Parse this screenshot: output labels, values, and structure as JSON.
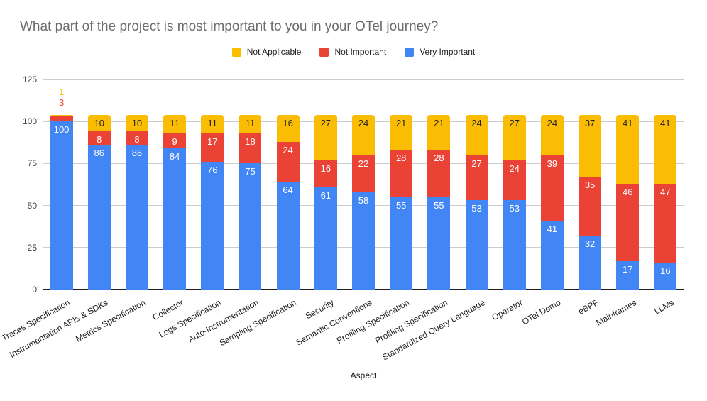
{
  "title": "What part of the project is most important to you in your OTel journey?",
  "legend": [
    {
      "label": "Not Applicable",
      "color": "#FBBC04"
    },
    {
      "label": "Not Important",
      "color": "#EA4335"
    },
    {
      "label": "Very Important",
      "color": "#4285F4"
    }
  ],
  "chart_data": {
    "type": "bar",
    "stacked": true,
    "title": "What part of the project is most important to you in your OTel journey?",
    "xlabel": "Aspect",
    "ylabel": "",
    "ylim": [
      0,
      125
    ],
    "yticks": [
      0,
      25,
      50,
      75,
      100,
      125
    ],
    "grid": true,
    "legend_position": "top",
    "categories": [
      "Traces Specification",
      "Instrumentation APIs & SDKs",
      "Metrics Specification",
      "Collector",
      "Logs Specification",
      "Auto-Instrumentation",
      "Sampling Specification",
      "Security",
      "Semantic Conventions",
      "Profiling Specification",
      "Profiling Specification",
      "Standardized Query Language",
      "Operator",
      "OTel Demo",
      "eBPF",
      "Mainframes",
      "LLMs"
    ],
    "series": [
      {
        "name": "Very Important",
        "color": "#4285F4",
        "label_color": "#ffffff",
        "values": [
          100,
          86,
          86,
          84,
          76,
          75,
          64,
          61,
          58,
          55,
          55,
          53,
          53,
          41,
          32,
          17,
          16
        ]
      },
      {
        "name": "Not Important",
        "color": "#EA4335",
        "label_color": "#ffffff",
        "values": [
          3,
          8,
          8,
          9,
          17,
          18,
          24,
          16,
          22,
          28,
          28,
          27,
          24,
          39,
          35,
          46,
          47
        ]
      },
      {
        "name": "Not Applicable",
        "color": "#FBBC04",
        "label_color": "#212121",
        "values": [
          1,
          10,
          10,
          11,
          11,
          11,
          16,
          27,
          24,
          21,
          21,
          24,
          27,
          24,
          37,
          41,
          41
        ]
      }
    ]
  }
}
